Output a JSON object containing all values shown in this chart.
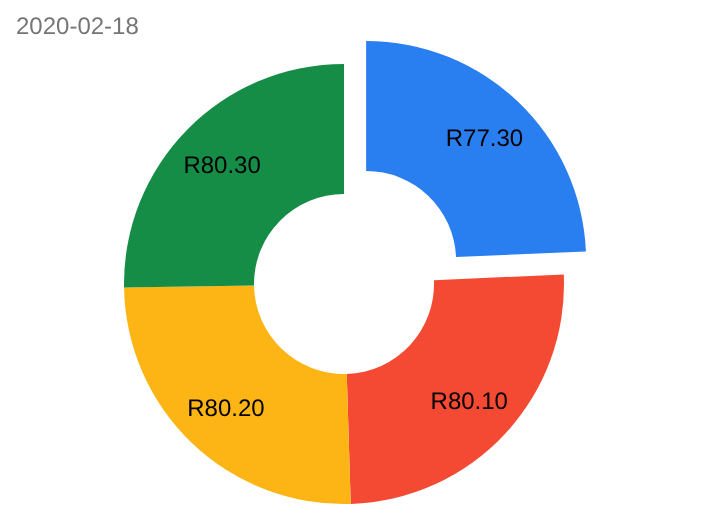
{
  "chart_data": {
    "type": "donut",
    "subtitle": "2020-02-18",
    "categories": [
      null,
      null,
      null,
      null
    ],
    "values": [
      77.3,
      80.1,
      80.2,
      80.3
    ],
    "value_labels": [
      "R77.30",
      "R80.10",
      "R80.20",
      "R80.30"
    ],
    "colors": [
      "#2a7ff0",
      "#f44a33",
      "#fdb515",
      "#168d47"
    ]
  }
}
